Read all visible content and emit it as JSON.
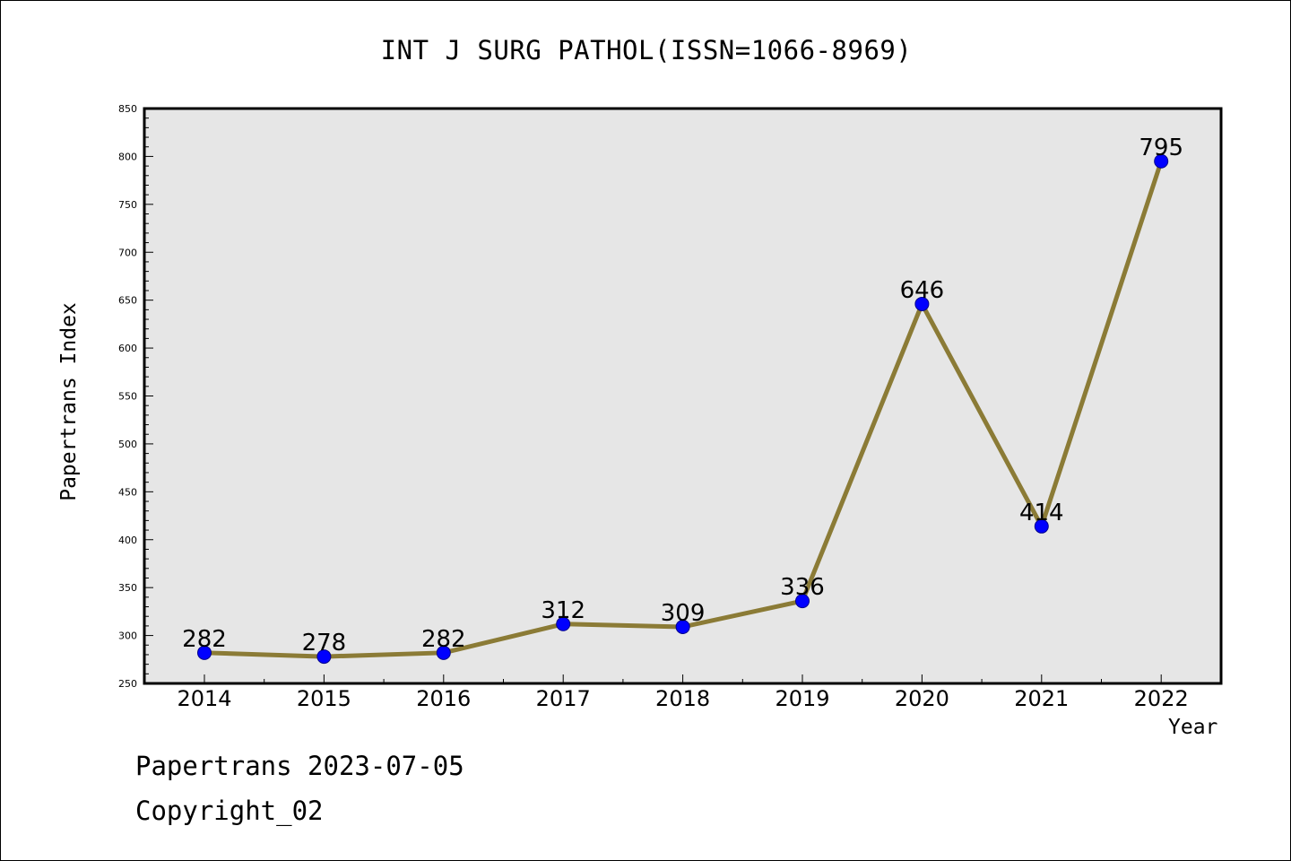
{
  "title": "INT J SURG PATHOL(ISSN=1066-8969)",
  "footer": {
    "date_line": "Papertrans 2023-07-05",
    "copyright_line": "Copyright_02"
  },
  "chart_data": {
    "type": "line",
    "title": "INT J SURG PATHOL(ISSN=1066-8969)",
    "xlabel": "Year",
    "ylabel": "Papertrans Index",
    "categories": [
      "2014",
      "2015",
      "2016",
      "2017",
      "2018",
      "2019",
      "2020",
      "2021",
      "2022"
    ],
    "series": [
      {
        "values": [
          282,
          278,
          282,
          312,
          309,
          336,
          646,
          414,
          795
        ],
        "data_labels": [
          "282",
          "278",
          "282",
          "312",
          "309",
          "336",
          "646",
          "414",
          "795"
        ]
      }
    ],
    "ylim": [
      250,
      850
    ],
    "yticks": [
      250,
      300,
      350,
      400,
      450,
      500,
      550,
      600,
      650,
      700,
      750,
      800,
      850
    ],
    "ytick_labels": [
      "250",
      "300",
      "350",
      "400",
      "450",
      "500",
      "550",
      "600",
      "650",
      "700",
      "750",
      "800",
      "850"
    ],
    "grid": false,
    "legend": "none",
    "colors": {
      "plot_background": "#e6e6e6",
      "line": "#8b7b36",
      "marker_fill": "#0000ff",
      "marker_edge": "#00008b",
      "axis": "#000000"
    }
  }
}
